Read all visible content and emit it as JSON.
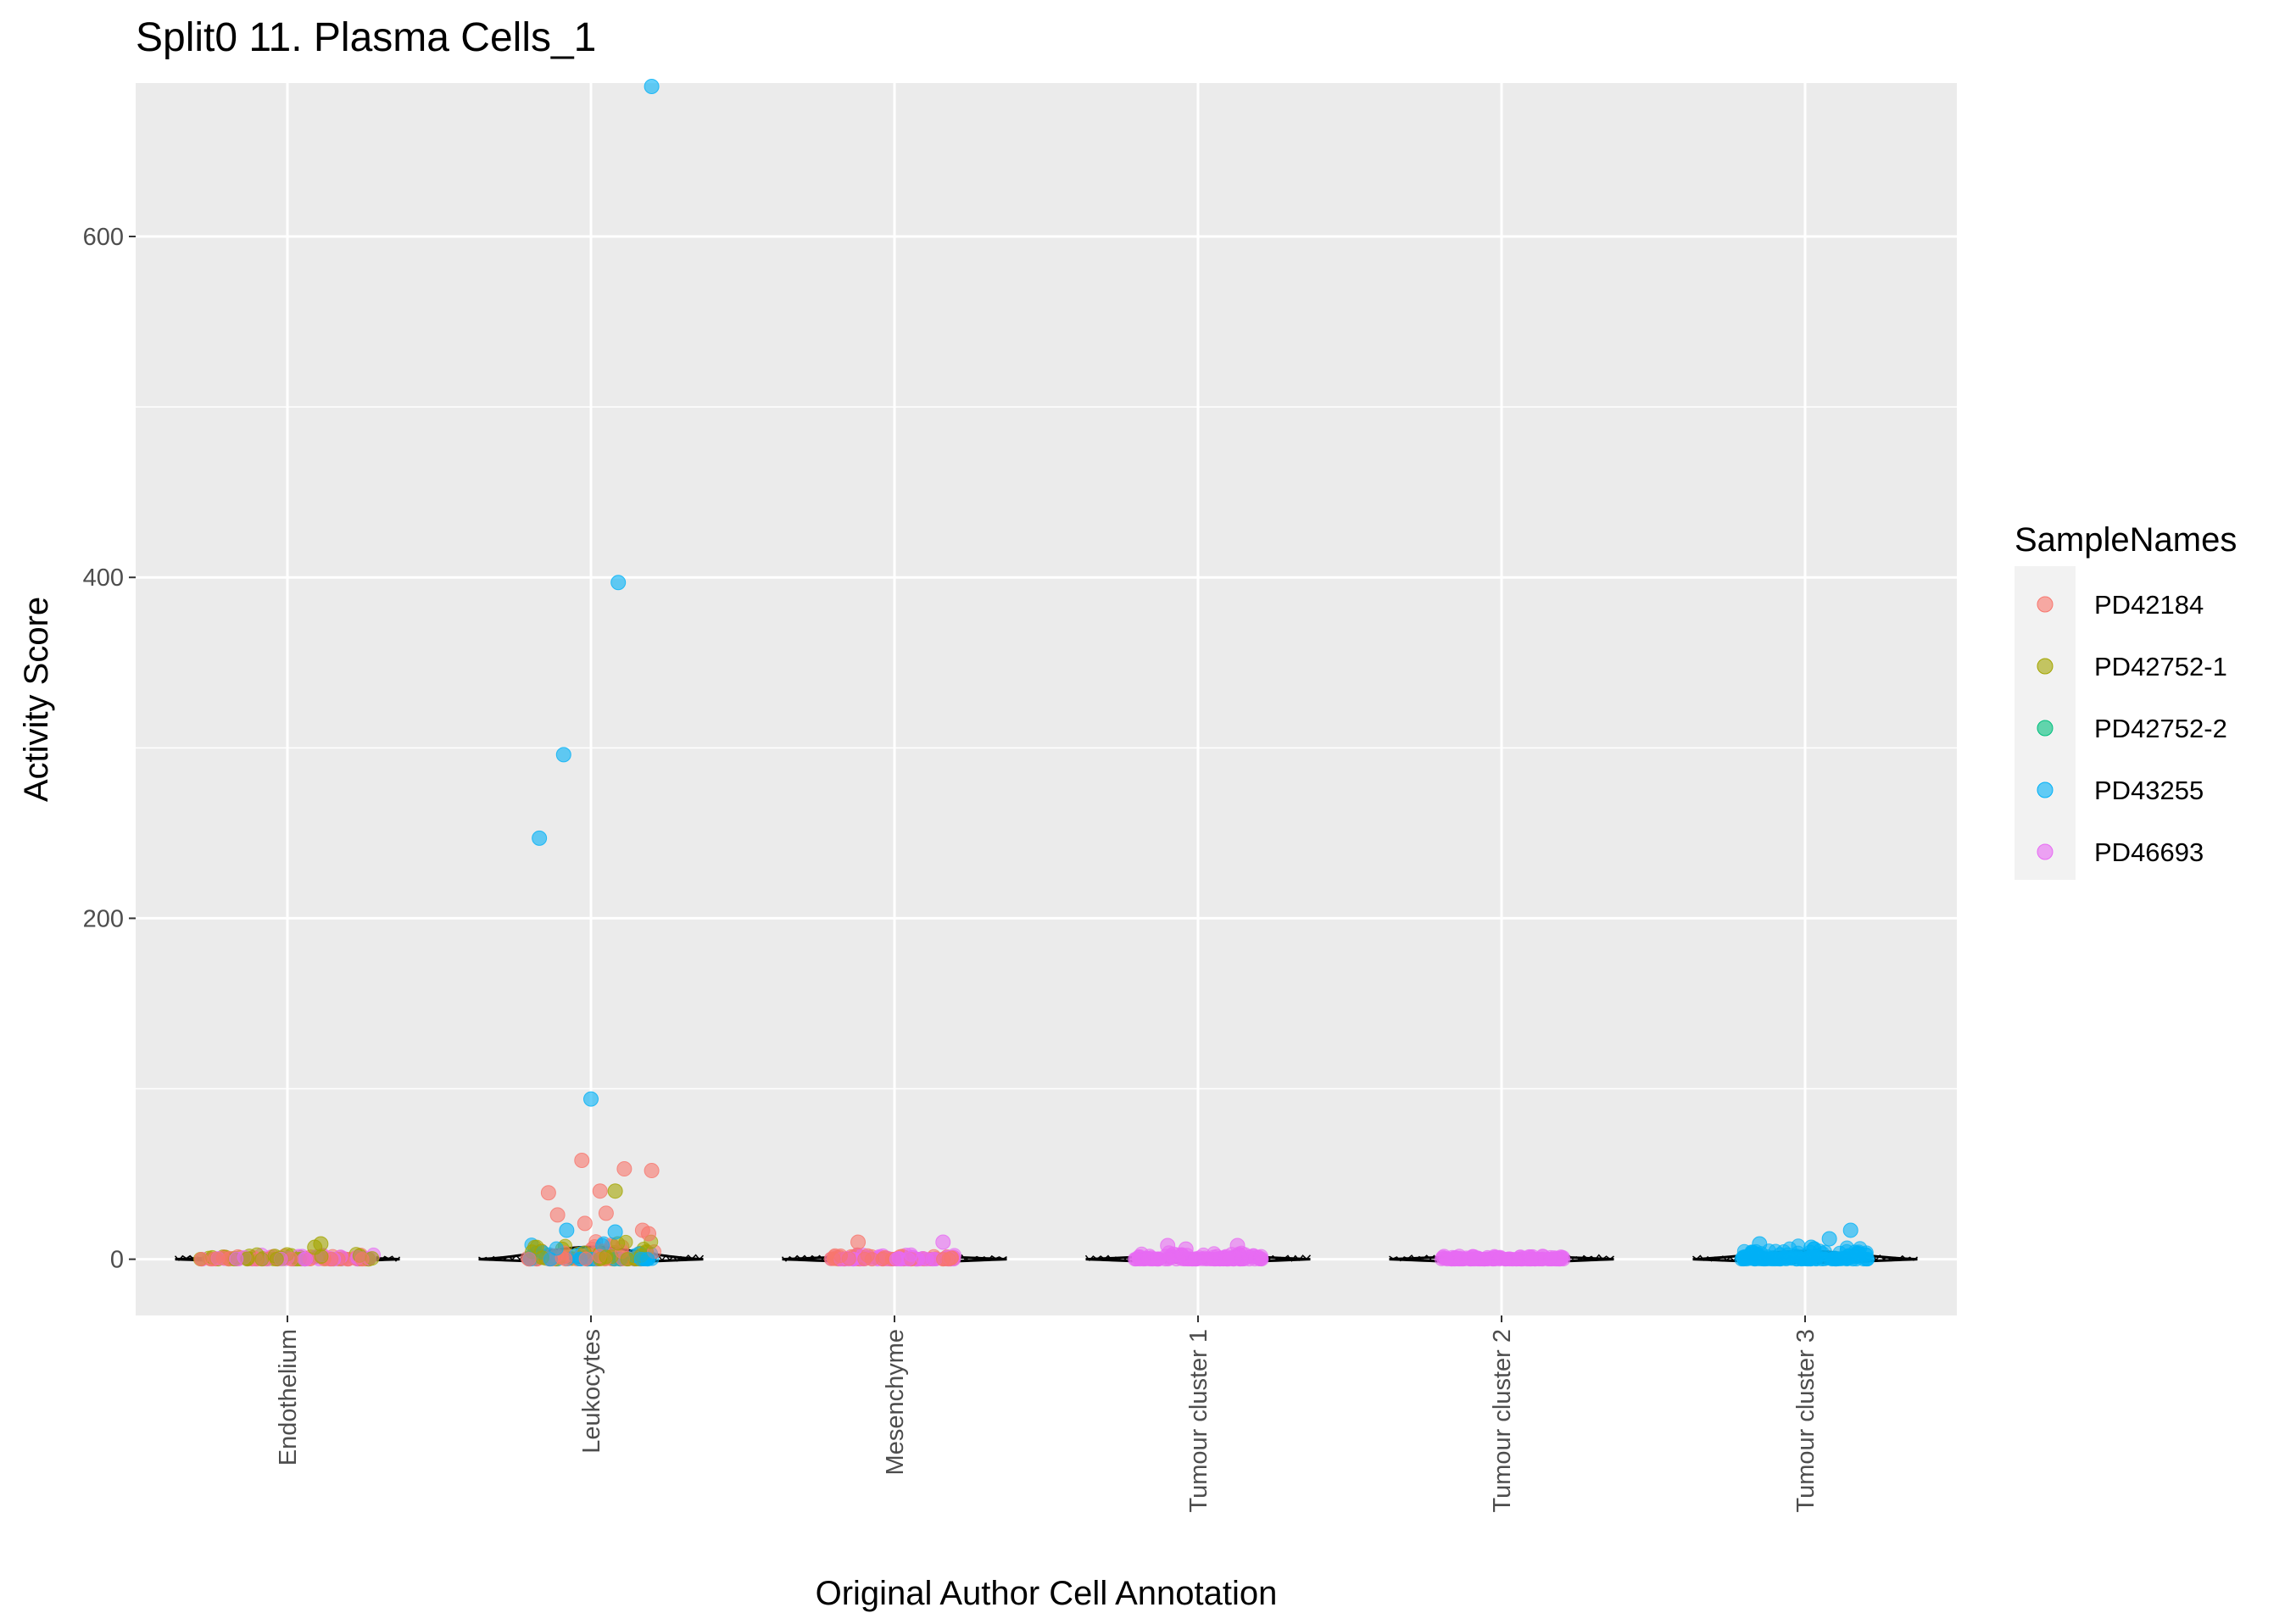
{
  "chart_data": {
    "type": "scatter",
    "subtype": "violin-with-jittered-points",
    "title": "Split0 11. Plasma Cells_1",
    "xlabel": "Original Author Cell Annotation",
    "ylabel": "Activity Score",
    "categories": [
      "Endothelium",
      "Leukocytes",
      "Mesenchyme",
      "Tumour cluster 1",
      "Tumour cluster 2",
      "Tumour cluster 3"
    ],
    "ylim": [
      -33,
      690
    ],
    "yticks": [
      0,
      200,
      400,
      600
    ],
    "ytick_labels": [
      "0",
      "200",
      "400",
      "600"
    ],
    "grid": true,
    "legend": {
      "title": "SampleNames",
      "position": "right",
      "entries": [
        "PD42184",
        "PD42752-1",
        "PD42752-2",
        "PD43255",
        "PD46693"
      ]
    },
    "colors": {
      "PD42184": "#F8766D",
      "PD42752-1": "#A3A500",
      "PD42752-2": "#00BF7D",
      "PD43255": "#00B0F6",
      "PD46693": "#E76BF3"
    },
    "notable_points": [
      {
        "category": "Leukocytes",
        "sample": "PD43255",
        "y": 688,
        "offset": 0.2
      },
      {
        "category": "Leukocytes",
        "sample": "PD43255",
        "y": 397,
        "offset": 0.09
      },
      {
        "category": "Leukocytes",
        "sample": "PD43255",
        "y": 296,
        "offset": -0.09
      },
      {
        "category": "Leukocytes",
        "sample": "PD43255",
        "y": 247,
        "offset": -0.17
      },
      {
        "category": "Leukocytes",
        "sample": "PD43255",
        "y": 94,
        "offset": 0.0
      },
      {
        "category": "Leukocytes",
        "sample": "PD42184",
        "y": 58,
        "offset": -0.03
      },
      {
        "category": "Leukocytes",
        "sample": "PD42184",
        "y": 53,
        "offset": 0.11
      },
      {
        "category": "Leukocytes",
        "sample": "PD42184",
        "y": 52,
        "offset": 0.2
      },
      {
        "category": "Leukocytes",
        "sample": "PD42184",
        "y": 40,
        "offset": 0.03
      },
      {
        "category": "Leukocytes",
        "sample": "PD42752-1",
        "y": 40,
        "offset": 0.08
      },
      {
        "category": "Leukocytes",
        "sample": "PD42184",
        "y": 39,
        "offset": -0.14
      },
      {
        "category": "Leukocytes",
        "sample": "PD42184",
        "y": 27,
        "offset": 0.05
      },
      {
        "category": "Leukocytes",
        "sample": "PD42184",
        "y": 26,
        "offset": -0.11
      },
      {
        "category": "Leukocytes",
        "sample": "PD42184",
        "y": 21,
        "offset": -0.02
      },
      {
        "category": "Leukocytes",
        "sample": "PD42184",
        "y": 17,
        "offset": 0.17
      },
      {
        "category": "Leukocytes",
        "sample": "PD43255",
        "y": 17,
        "offset": -0.08
      },
      {
        "category": "Leukocytes",
        "sample": "PD43255",
        "y": 16,
        "offset": 0.08
      },
      {
        "category": "Leukocytes",
        "sample": "PD42184",
        "y": 15,
        "offset": 0.19
      },
      {
        "category": "Endothelium",
        "sample": "PD42752-1",
        "y": 9,
        "offset": 0.11
      },
      {
        "category": "Endothelium",
        "sample": "PD42752-1",
        "y": 7,
        "offset": 0.09
      },
      {
        "category": "Mesenchyme",
        "sample": "PD42184",
        "y": 10,
        "offset": -0.12
      },
      {
        "category": "Mesenchyme",
        "sample": "PD46693",
        "y": 10,
        "offset": 0.16
      },
      {
        "category": "Tumour cluster 1",
        "sample": "PD46693",
        "y": 8,
        "offset": -0.1
      },
      {
        "category": "Tumour cluster 1",
        "sample": "PD46693",
        "y": 8,
        "offset": 0.13
      },
      {
        "category": "Tumour cluster 1",
        "sample": "PD46693",
        "y": 6,
        "offset": -0.04
      },
      {
        "category": "Tumour cluster 3",
        "sample": "PD43255",
        "y": 17,
        "offset": 0.15
      },
      {
        "category": "Tumour cluster 3",
        "sample": "PD43255",
        "y": 12,
        "offset": 0.08
      },
      {
        "category": "Tumour cluster 3",
        "sample": "PD43255",
        "y": 9,
        "offset": -0.15
      },
      {
        "category": "Tumour cluster 3",
        "sample": "PD43255",
        "y": 7,
        "offset": 0.02
      }
    ],
    "baseline_clusters": [
      {
        "category": "Endothelium",
        "samples": [
          "PD42184",
          "PD42752-1",
          "PD46693"
        ],
        "y_max": 3,
        "spread": 0.29
      },
      {
        "category": "Leukocytes",
        "samples": [
          "PD42184",
          "PD42752-1",
          "PD43255"
        ],
        "y_max": 12,
        "spread": 0.21
      },
      {
        "category": "Mesenchyme",
        "samples": [
          "PD42184",
          "PD46693"
        ],
        "y_max": 3,
        "spread": 0.21
      },
      {
        "category": "Tumour cluster 1",
        "samples": [
          "PD46693"
        ],
        "y_max": 4,
        "spread": 0.21
      },
      {
        "category": "Tumour cluster 2",
        "samples": [
          "PD46693"
        ],
        "y_max": 2,
        "spread": 0.21
      },
      {
        "category": "Tumour cluster 3",
        "samples": [
          "PD43255"
        ],
        "y_max": 8,
        "spread": 0.21
      }
    ],
    "violin_half_width": 0.37
  }
}
